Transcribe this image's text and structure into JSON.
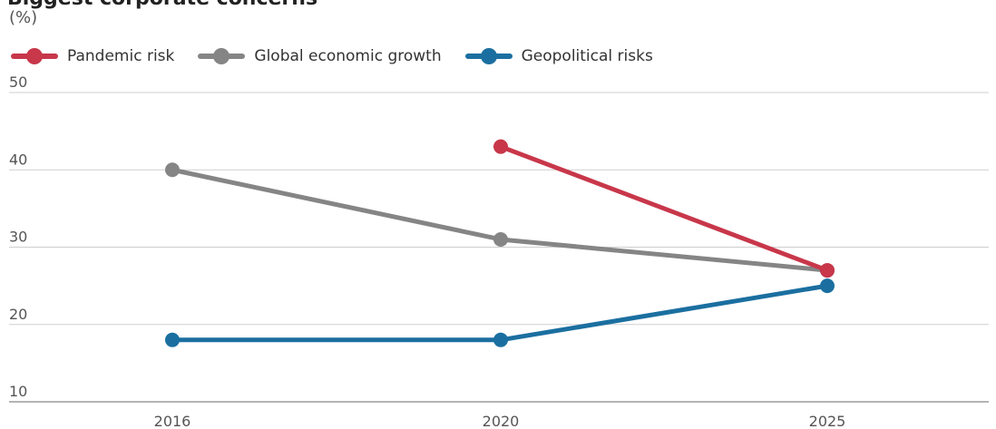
{
  "title": "Biggest corporate concerns",
  "unit_label": "(%)",
  "colors": {
    "pandemic": "#c8374a",
    "economic": "#858585",
    "geopolitical": "#1b6fa0",
    "grid": "#cfcfcf",
    "axis": "#888888"
  },
  "chart_data": {
    "type": "line",
    "x": [
      "2016",
      "2020",
      "2025"
    ],
    "ylim": [
      10,
      50
    ],
    "yticks": [
      "10",
      "20",
      "30",
      "40",
      "50"
    ],
    "xlabel": "",
    "ylabel": "(%)",
    "grid": true,
    "legend": "top-left",
    "series": [
      {
        "name": "Pandemic risk",
        "color_key": "pandemic",
        "values": [
          null,
          43,
          27
        ]
      },
      {
        "name": "Global economic growth",
        "color_key": "economic",
        "values": [
          40,
          31,
          27
        ]
      },
      {
        "name": "Geopolitical risks",
        "color_key": "geopolitical",
        "values": [
          18,
          18,
          25
        ]
      }
    ]
  }
}
